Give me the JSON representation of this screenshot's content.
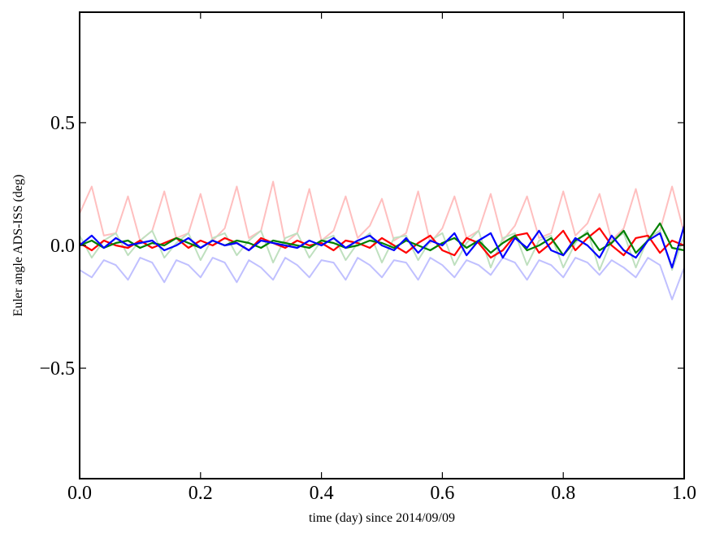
{
  "chart_data": {
    "type": "line",
    "title": "",
    "xlabel": "time (day) since 2014/09/09",
    "ylabel": "Euler angle ADS-ISS (deg)",
    "xlim": [
      0.0,
      1.0
    ],
    "ylim": [
      -0.95,
      0.95
    ],
    "x_ticks": [
      0.0,
      0.2,
      0.4,
      0.6,
      0.8,
      1.0
    ],
    "x_tick_labels": [
      "0.0",
      "0.2",
      "0.4",
      "0.6",
      "0.8",
      "1.0"
    ],
    "y_ticks": [
      -0.5,
      0.0,
      0.5
    ],
    "y_tick_labels": [
      "−0.5",
      "0.0",
      "0.5"
    ],
    "grid": false,
    "legend": "none",
    "x": [
      0.0,
      0.02,
      0.04,
      0.06,
      0.08,
      0.1,
      0.12,
      0.14,
      0.16,
      0.18,
      0.2,
      0.22,
      0.24,
      0.26,
      0.28,
      0.3,
      0.32,
      0.34,
      0.36,
      0.38,
      0.4,
      0.42,
      0.44,
      0.46,
      0.48,
      0.5,
      0.52,
      0.54,
      0.56,
      0.58,
      0.6,
      0.62,
      0.64,
      0.66,
      0.68,
      0.7,
      0.72,
      0.74,
      0.76,
      0.78,
      0.8,
      0.82,
      0.84,
      0.86,
      0.88,
      0.9,
      0.92,
      0.94,
      0.96,
      0.98,
      1.0
    ],
    "series": [
      {
        "color": "#ffbfbf",
        "opacity": 1,
        "width": 2,
        "values": [
          0.13,
          0.24,
          0.04,
          0.05,
          0.2,
          0.02,
          0.06,
          0.22,
          0.03,
          0.05,
          0.21,
          0.02,
          0.07,
          0.24,
          0.03,
          0.06,
          0.26,
          0.01,
          0.05,
          0.23,
          0.02,
          0.06,
          0.2,
          0.03,
          0.08,
          0.19,
          0.02,
          0.05,
          0.22,
          0.01,
          0.07,
          0.2,
          0.03,
          0.06,
          0.21,
          0.02,
          0.08,
          0.2,
          0.03,
          0.05,
          0.22,
          0.04,
          0.09,
          0.21,
          0.02,
          0.07,
          0.23,
          0.03,
          0.06,
          0.24,
          0.05
        ]
      },
      {
        "color": "#bfe0bf",
        "opacity": 1,
        "width": 2,
        "values": [
          0.04,
          -0.05,
          0.02,
          0.05,
          -0.04,
          0.02,
          0.06,
          -0.05,
          0.01,
          0.05,
          -0.06,
          0.03,
          0.05,
          -0.04,
          0.02,
          0.06,
          -0.07,
          0.03,
          0.05,
          -0.05,
          0.02,
          0.04,
          -0.06,
          0.01,
          0.05,
          -0.07,
          0.03,
          0.04,
          -0.06,
          0.02,
          0.05,
          -0.08,
          0.01,
          0.06,
          -0.09,
          0.03,
          0.05,
          -0.08,
          0.02,
          0.04,
          -0.09,
          0.01,
          0.06,
          -0.1,
          0.02,
          0.05,
          -0.09,
          0.03,
          0.06,
          -0.1,
          0.04
        ]
      },
      {
        "color": "#c0c0ff",
        "opacity": 1,
        "width": 2,
        "values": [
          -0.1,
          -0.13,
          -0.06,
          -0.08,
          -0.14,
          -0.05,
          -0.07,
          -0.15,
          -0.06,
          -0.08,
          -0.13,
          -0.05,
          -0.07,
          -0.15,
          -0.06,
          -0.09,
          -0.14,
          -0.05,
          -0.08,
          -0.13,
          -0.06,
          -0.07,
          -0.14,
          -0.05,
          -0.08,
          -0.13,
          -0.06,
          -0.07,
          -0.14,
          -0.05,
          -0.08,
          -0.13,
          -0.06,
          -0.08,
          -0.12,
          -0.05,
          -0.07,
          -0.14,
          -0.06,
          -0.08,
          -0.13,
          -0.05,
          -0.07,
          -0.12,
          -0.06,
          -0.09,
          -0.13,
          -0.05,
          -0.08,
          -0.22,
          -0.09
        ]
      },
      {
        "color": "#ff0000",
        "opacity": 1,
        "width": 2.2,
        "values": [
          0.01,
          -0.02,
          0.02,
          0.0,
          -0.01,
          0.02,
          -0.01,
          0.01,
          0.03,
          -0.01,
          0.02,
          0.0,
          0.03,
          0.01,
          -0.02,
          0.03,
          0.01,
          -0.01,
          0.02,
          0.0,
          0.01,
          -0.02,
          0.02,
          0.01,
          -0.01,
          0.03,
          0.0,
          -0.03,
          0.01,
          0.04,
          -0.02,
          -0.04,
          0.03,
          0.01,
          -0.05,
          -0.02,
          0.04,
          0.05,
          -0.03,
          0.01,
          0.06,
          -0.02,
          0.03,
          0.07,
          0.0,
          -0.04,
          0.03,
          0.04,
          -0.03,
          0.02,
          0.0
        ]
      },
      {
        "color": "#008000",
        "opacity": 1,
        "width": 2.2,
        "values": [
          0.0,
          0.02,
          -0.01,
          0.01,
          0.02,
          -0.01,
          0.01,
          0.0,
          0.03,
          0.01,
          -0.01,
          0.02,
          0.0,
          0.02,
          0.01,
          -0.01,
          0.02,
          0.01,
          0.0,
          -0.01,
          0.02,
          0.01,
          -0.01,
          0.0,
          0.02,
          0.01,
          -0.01,
          0.02,
          0.0,
          -0.02,
          0.01,
          0.03,
          -0.01,
          0.02,
          -0.03,
          0.01,
          0.04,
          -0.02,
          0.0,
          0.03,
          -0.04,
          0.02,
          0.05,
          -0.02,
          0.01,
          0.06,
          -0.03,
          0.02,
          0.09,
          -0.01,
          -0.02
        ]
      },
      {
        "color": "#0000ff",
        "opacity": 1,
        "width": 2.2,
        "values": [
          0.0,
          0.04,
          -0.01,
          0.03,
          0.0,
          0.01,
          0.02,
          -0.02,
          0.0,
          0.03,
          -0.01,
          0.02,
          0.0,
          0.01,
          -0.02,
          0.02,
          0.01,
          0.0,
          -0.01,
          0.02,
          0.0,
          0.03,
          -0.01,
          0.02,
          0.04,
          0.0,
          -0.02,
          0.03,
          -0.03,
          0.02,
          0.0,
          0.05,
          -0.04,
          0.02,
          0.05,
          -0.05,
          0.03,
          -0.01,
          0.06,
          -0.02,
          -0.04,
          0.03,
          0.0,
          -0.05,
          0.04,
          -0.02,
          -0.05,
          0.02,
          0.05,
          -0.09,
          0.08
        ]
      }
    ]
  }
}
